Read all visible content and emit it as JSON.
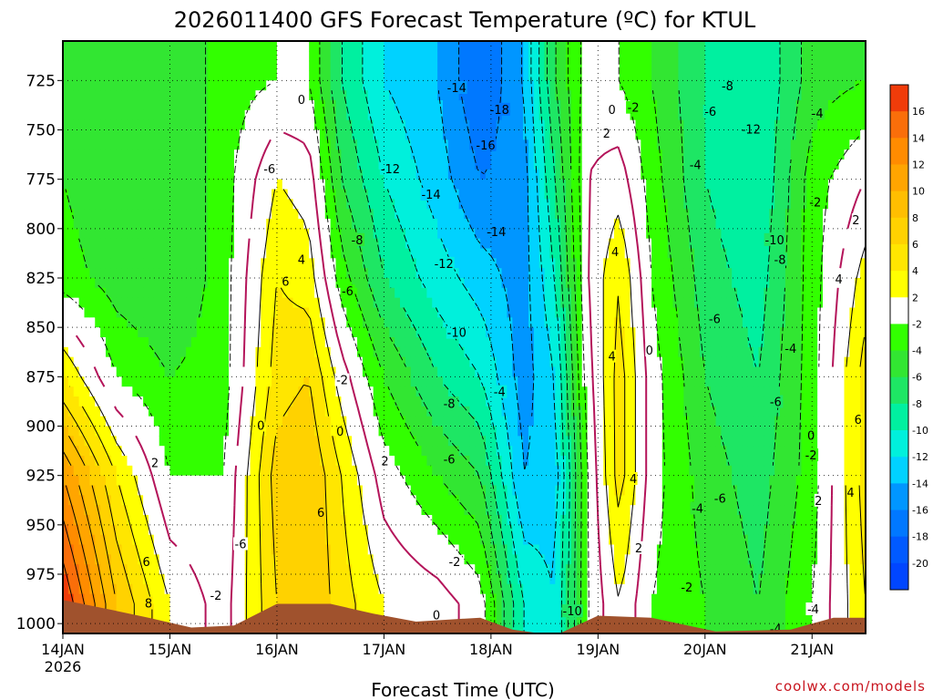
{
  "chart_data": {
    "type": "heatmap",
    "title": "2026011400 GFS Forecast Temperature (ºC) for KTUL",
    "xlabel": "Forecast Time (UTC)",
    "ylabel": "",
    "credit": "coolwx.com/models",
    "x_range_days": [
      0,
      7.5
    ],
    "y_range_hpa": [
      1005,
      705
    ],
    "x_ticks": [
      {
        "day": 0,
        "label": "14JAN",
        "sublabel": "2026"
      },
      {
        "day": 1,
        "label": "15JAN",
        "sublabel": ""
      },
      {
        "day": 2,
        "label": "16JAN",
        "sublabel": ""
      },
      {
        "day": 3,
        "label": "17JAN",
        "sublabel": ""
      },
      {
        "day": 4,
        "label": "18JAN",
        "sublabel": ""
      },
      {
        "day": 5,
        "label": "19JAN",
        "sublabel": ""
      },
      {
        "day": 6,
        "label": "20JAN",
        "sublabel": ""
      },
      {
        "day": 7,
        "label": "21JAN",
        "sublabel": ""
      }
    ],
    "y_ticks": [
      725,
      750,
      775,
      800,
      825,
      850,
      875,
      900,
      925,
      950,
      975,
      1000
    ],
    "grid": true,
    "colorbar": {
      "labels": [
        "16",
        "14",
        "12",
        "10",
        "8",
        "6",
        "4",
        "2",
        "-2",
        "-4",
        "-6",
        "-8",
        "-10",
        "-12",
        "-14",
        "-16",
        "-18",
        "-20"
      ],
      "colors": [
        "#f03c0a",
        "#fa6e0a",
        "#ff8c00",
        "#ffa500",
        "#ffbe00",
        "#ffd200",
        "#ffe600",
        "#ffff00",
        "#ffffff",
        "#32ff00",
        "#32e632",
        "#1ee664",
        "#00f0a0",
        "#00f0dc",
        "#00d2ff",
        "#0096ff",
        "#0078ff",
        "#005aff",
        "#0046ff"
      ]
    },
    "temperature_keyframes": [
      {
        "day": 0.0,
        "values": [
          18,
          12,
          4,
          -3,
          -4,
          -4
        ]
      },
      {
        "day": 0.5,
        "values": [
          8,
          4,
          -2,
          -5,
          -6,
          -6
        ]
      },
      {
        "day": 1.0,
        "values": [
          2,
          -2,
          -4,
          -6,
          -6,
          -6
        ]
      },
      {
        "day": 1.5,
        "values": [
          -1,
          -2,
          -3,
          -3,
          -3,
          -3
        ]
      },
      {
        "day": 2.0,
        "values": [
          6,
          7,
          5,
          4,
          2,
          -2
        ]
      },
      {
        "day": 2.3,
        "values": [
          8,
          8,
          6,
          3,
          1,
          -2
        ]
      },
      {
        "day": 2.6,
        "values": [
          5,
          4,
          1,
          -3,
          -6,
          -8
        ]
      },
      {
        "day": 3.0,
        "values": [
          2,
          -1,
          -4,
          -8,
          -10,
          -12
        ]
      },
      {
        "day": 3.5,
        "values": [
          1,
          -4,
          -8,
          -11,
          -13,
          -14
        ]
      },
      {
        "day": 3.9,
        "values": [
          -1,
          -6,
          -10,
          -13,
          -16,
          -18
        ]
      },
      {
        "day": 4.3,
        "values": [
          -10,
          -14,
          -15,
          -15,
          -15,
          -14
        ]
      },
      {
        "day": 4.6,
        "values": [
          -12,
          -13,
          -12,
          -10,
          -8,
          -6
        ]
      },
      {
        "day": 4.9,
        "values": [
          -2,
          -2,
          -1,
          0,
          0,
          -1
        ]
      },
      {
        "day": 5.2,
        "values": [
          2,
          5,
          5,
          4,
          1,
          -2
        ]
      },
      {
        "day": 5.5,
        "values": [
          -2,
          -1,
          -1,
          -2,
          -3,
          -4
        ]
      },
      {
        "day": 6.0,
        "values": [
          -4,
          -5,
          -6,
          -7,
          -8,
          -8
        ]
      },
      {
        "day": 6.5,
        "values": [
          -6,
          -7,
          -8,
          -9,
          -10,
          -10
        ]
      },
      {
        "day": 7.0,
        "values": [
          -2,
          -3,
          -3,
          -3,
          -3,
          -5
        ]
      },
      {
        "day": 7.5,
        "values": [
          4,
          5,
          5,
          3,
          0,
          -4
        ]
      }
    ],
    "temperature_levels_hpa": [
      990,
      925,
      875,
      825,
      775,
      725
    ],
    "surface_pressure_keyframes": [
      {
        "day": 0.0,
        "p": 988
      },
      {
        "day": 0.45,
        "p": 993
      },
      {
        "day": 0.8,
        "p": 997
      },
      {
        "day": 1.2,
        "p": 1002
      },
      {
        "day": 1.6,
        "p": 1001
      },
      {
        "day": 2.0,
        "p": 990
      },
      {
        "day": 2.5,
        "p": 990
      },
      {
        "day": 2.9,
        "p": 995
      },
      {
        "day": 3.3,
        "p": 999
      },
      {
        "day": 3.9,
        "p": 997
      },
      {
        "day": 4.2,
        "p": 1003
      },
      {
        "day": 4.6,
        "p": 1006
      },
      {
        "day": 5.0,
        "p": 996
      },
      {
        "day": 5.5,
        "p": 997
      },
      {
        "day": 6.1,
        "p": 1004
      },
      {
        "day": 6.8,
        "p": 1003
      },
      {
        "day": 7.2,
        "p": 997
      },
      {
        "day": 7.5,
        "p": 997
      }
    ],
    "contour_labels": [
      {
        "day": 2.23,
        "p": 735,
        "text": "0"
      },
      {
        "day": 1.93,
        "p": 770,
        "text": "-6"
      },
      {
        "day": 3.06,
        "p": 770,
        "text": "-12"
      },
      {
        "day": 3.68,
        "p": 729,
        "text": "-14"
      },
      {
        "day": 4.08,
        "p": 740,
        "text": "-18"
      },
      {
        "day": 3.95,
        "p": 758,
        "text": "-16"
      },
      {
        "day": 3.44,
        "p": 783,
        "text": "-14"
      },
      {
        "day": 4.05,
        "p": 802,
        "text": "-14"
      },
      {
        "day": 2.75,
        "p": 806,
        "text": "-8"
      },
      {
        "day": 2.66,
        "p": 832,
        "text": "-6"
      },
      {
        "day": 3.56,
        "p": 818,
        "text": "-12"
      },
      {
        "day": 3.68,
        "p": 853,
        "text": "-10"
      },
      {
        "day": 2.23,
        "p": 816,
        "text": "4"
      },
      {
        "day": 2.08,
        "p": 827,
        "text": "6"
      },
      {
        "day": 2.61,
        "p": 877,
        "text": "-2"
      },
      {
        "day": 1.85,
        "p": 900,
        "text": "0"
      },
      {
        "day": 2.59,
        "p": 903,
        "text": "0"
      },
      {
        "day": 3.01,
        "p": 918,
        "text": "2"
      },
      {
        "day": 2.41,
        "p": 944,
        "text": "6"
      },
      {
        "day": 3.61,
        "p": 889,
        "text": "-8"
      },
      {
        "day": 4.08,
        "p": 883,
        "text": "-4"
      },
      {
        "day": 3.61,
        "p": 917,
        "text": "-6"
      },
      {
        "day": 3.66,
        "p": 969,
        "text": "-2"
      },
      {
        "day": 3.49,
        "p": 996,
        "text": "0"
      },
      {
        "day": 1.66,
        "p": 960,
        "text": "-6"
      },
      {
        "day": 1.43,
        "p": 986,
        "text": "-2"
      },
      {
        "day": 0.86,
        "p": 919,
        "text": "2"
      },
      {
        "day": 0.78,
        "p": 969,
        "text": "6"
      },
      {
        "day": 0.8,
        "p": 990,
        "text": "8"
      },
      {
        "day": 4.76,
        "p": 994,
        "text": "-10"
      },
      {
        "day": 5.13,
        "p": 740,
        "text": "0"
      },
      {
        "day": 5.33,
        "p": 739,
        "text": "-2"
      },
      {
        "day": 5.08,
        "p": 752,
        "text": "2"
      },
      {
        "day": 5.16,
        "p": 812,
        "text": "4"
      },
      {
        "day": 5.13,
        "p": 865,
        "text": "4"
      },
      {
        "day": 5.48,
        "p": 862,
        "text": "0"
      },
      {
        "day": 5.33,
        "p": 927,
        "text": "4"
      },
      {
        "day": 5.38,
        "p": 962,
        "text": "2"
      },
      {
        "day": 5.83,
        "p": 982,
        "text": "-2"
      },
      {
        "day": 5.93,
        "p": 942,
        "text": "-4"
      },
      {
        "day": 6.14,
        "p": 937,
        "text": "-6"
      },
      {
        "day": 5.91,
        "p": 768,
        "text": "-4"
      },
      {
        "day": 6.05,
        "p": 741,
        "text": "-6"
      },
      {
        "day": 6.21,
        "p": 728,
        "text": "-8"
      },
      {
        "day": 6.43,
        "p": 750,
        "text": "-12"
      },
      {
        "day": 6.09,
        "p": 846,
        "text": "-6"
      },
      {
        "day": 6.65,
        "p": 806,
        "text": "-10"
      },
      {
        "day": 6.7,
        "p": 816,
        "text": "-8"
      },
      {
        "day": 6.66,
        "p": 888,
        "text": "-6"
      },
      {
        "day": 6.8,
        "p": 861,
        "text": "-4"
      },
      {
        "day": 7.05,
        "p": 742,
        "text": "-4"
      },
      {
        "day": 7.03,
        "p": 787,
        "text": "-2"
      },
      {
        "day": 7.41,
        "p": 796,
        "text": "2"
      },
      {
        "day": 7.25,
        "p": 826,
        "text": "4"
      },
      {
        "day": 6.99,
        "p": 905,
        "text": "0"
      },
      {
        "day": 6.99,
        "p": 915,
        "text": "-2"
      },
      {
        "day": 7.06,
        "p": 938,
        "text": "2"
      },
      {
        "day": 7.36,
        "p": 934,
        "text": "4"
      },
      {
        "day": 7.43,
        "p": 897,
        "text": "6"
      },
      {
        "day": 7.01,
        "p": 993,
        "text": "-4"
      },
      {
        "day": 6.66,
        "p": 1003,
        "text": "-4"
      }
    ],
    "colors": {
      "terrain": "#a0522d",
      "zero_contour": "#b4145a",
      "credit": "#c8141e"
    }
  }
}
